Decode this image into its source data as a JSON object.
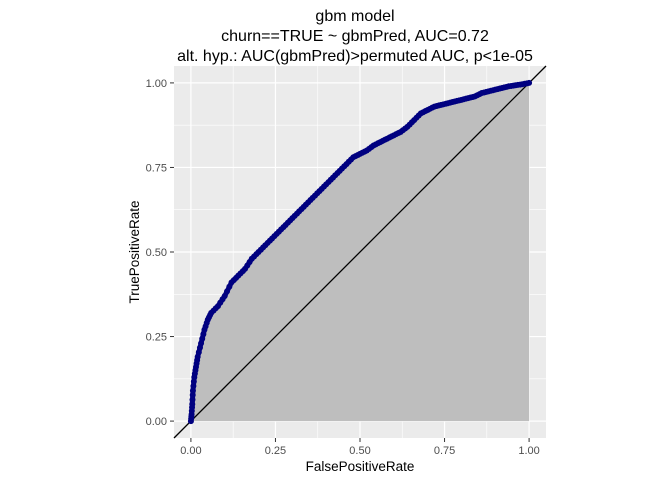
{
  "chart_data": {
    "type": "line",
    "title": [
      "gbm model",
      "churn==TRUE ~ gbmPred, AUC=0.72",
      "alt. hyp.: AUC(gbmPred)>permuted AUC, p<1e-05"
    ],
    "xlabel": "FalsePositiveRate",
    "ylabel": "TruePositiveRate",
    "xlim": [
      -0.05,
      1.05
    ],
    "ylim": [
      -0.05,
      1.05
    ],
    "x_ticks": [
      0,
      0.25,
      0.5,
      0.75,
      1
    ],
    "x_tick_labels": [
      "0.00",
      "0.25",
      "0.50",
      "0.75",
      "1.00"
    ],
    "y_ticks": [
      0,
      0.25,
      0.5,
      0.75,
      1
    ],
    "y_tick_labels": [
      "0.00",
      "0.25",
      "0.50",
      "0.75",
      "1.00"
    ],
    "grid": true,
    "series": [
      {
        "role": "roc-curve",
        "color": "#000080",
        "points": [
          [
            0,
            0
          ],
          [
            0.002,
            0.02
          ],
          [
            0.004,
            0.05
          ],
          [
            0.006,
            0.09
          ],
          [
            0.01,
            0.13
          ],
          [
            0.015,
            0.16
          ],
          [
            0.02,
            0.19
          ],
          [
            0.03,
            0.23
          ],
          [
            0.04,
            0.27
          ],
          [
            0.05,
            0.3
          ],
          [
            0.06,
            0.32
          ],
          [
            0.08,
            0.34
          ],
          [
            0.1,
            0.37
          ],
          [
            0.12,
            0.41
          ],
          [
            0.14,
            0.43
          ],
          [
            0.16,
            0.45
          ],
          [
            0.18,
            0.48
          ],
          [
            0.2,
            0.5
          ],
          [
            0.22,
            0.52
          ],
          [
            0.24,
            0.54
          ],
          [
            0.26,
            0.56
          ],
          [
            0.28,
            0.58
          ],
          [
            0.3,
            0.6
          ],
          [
            0.32,
            0.62
          ],
          [
            0.34,
            0.64
          ],
          [
            0.36,
            0.66
          ],
          [
            0.38,
            0.68
          ],
          [
            0.4,
            0.7
          ],
          [
            0.42,
            0.72
          ],
          [
            0.44,
            0.74
          ],
          [
            0.46,
            0.76
          ],
          [
            0.48,
            0.78
          ],
          [
            0.5,
            0.79
          ],
          [
            0.52,
            0.8
          ],
          [
            0.54,
            0.815
          ],
          [
            0.56,
            0.825
          ],
          [
            0.58,
            0.835
          ],
          [
            0.6,
            0.845
          ],
          [
            0.62,
            0.855
          ],
          [
            0.64,
            0.87
          ],
          [
            0.66,
            0.89
          ],
          [
            0.68,
            0.91
          ],
          [
            0.7,
            0.92
          ],
          [
            0.72,
            0.93
          ],
          [
            0.74,
            0.935
          ],
          [
            0.76,
            0.94
          ],
          [
            0.78,
            0.945
          ],
          [
            0.8,
            0.95
          ],
          [
            0.82,
            0.955
          ],
          [
            0.84,
            0.96
          ],
          [
            0.86,
            0.97
          ],
          [
            0.88,
            0.975
          ],
          [
            0.9,
            0.98
          ],
          [
            0.92,
            0.985
          ],
          [
            0.94,
            0.99
          ],
          [
            0.96,
            0.993
          ],
          [
            0.98,
            0.996
          ],
          [
            1,
            1
          ]
        ]
      },
      {
        "role": "diagonal-reference",
        "color": "#000000",
        "points": [
          [
            -0.05,
            -0.05
          ],
          [
            1.05,
            1.05
          ]
        ]
      }
    ],
    "shaded_area_color": "#bebebe",
    "panel_color": "#ebebeb",
    "grid_color": "#ffffff"
  }
}
